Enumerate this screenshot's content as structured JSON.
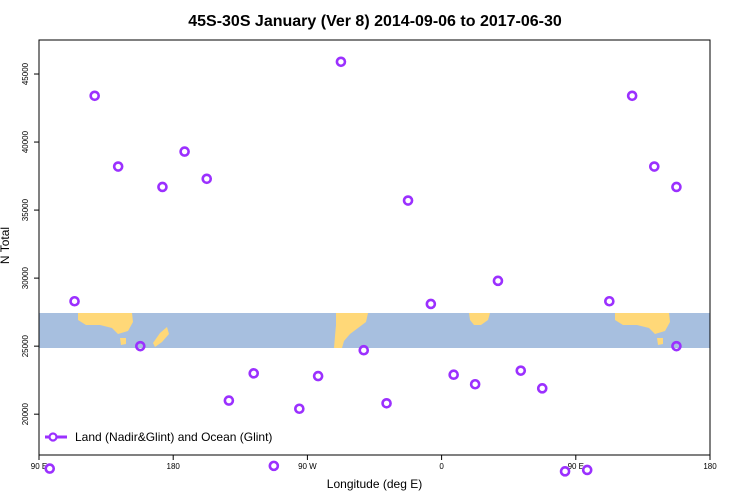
{
  "chart_data": {
    "type": "scatter",
    "title": "45S-30S January (Ver 8)   2014-09-06 to 2017-06-30",
    "xlabel": "Longitude (deg E)",
    "ylabel": "N Total",
    "x_ticks": [
      "90 E",
      "180",
      "90 W",
      "0",
      "90 E",
      "180"
    ],
    "y_ticks": [
      "20000",
      "25000",
      "30000",
      "35000",
      "40000",
      "45000"
    ],
    "y_tick_values": [
      20000,
      25000,
      30000,
      35000,
      40000,
      45000
    ],
    "ylim": [
      17000,
      47500
    ],
    "xlim": [
      0,
      10
    ],
    "legend_position": "bottom-left",
    "series": [
      {
        "name": "Land (Nadir&Glint) and Ocean (Glint)",
        "color": "#9b30ff",
        "marker": "open-circle",
        "x": [
          0.16,
          0.53,
          0.83,
          1.18,
          1.51,
          1.84,
          2.17,
          2.5,
          2.83,
          3.2,
          3.5,
          3.88,
          4.16,
          4.5,
          4.84,
          5.18,
          5.5,
          5.84,
          6.18,
          6.5,
          6.84,
          7.18,
          7.5,
          7.84,
          8.17,
          8.5,
          8.84,
          9.17,
          9.5
        ],
        "y": [
          16000,
          28300,
          43400,
          38200,
          25000,
          36700,
          39300,
          37300,
          21000,
          23000,
          16200,
          20400,
          22800,
          45900,
          24700,
          20800,
          35700,
          28100,
          22900,
          22200,
          29800,
          23200,
          21900,
          15800,
          15900,
          28300,
          43400,
          38200,
          25000
        ]
      }
    ],
    "extra_points": [
      {
        "x": 9.5,
        "y": 36700
      }
    ],
    "background_map": {
      "ocean_color": "#a7bfdf",
      "land_color": "#ffd878"
    }
  }
}
